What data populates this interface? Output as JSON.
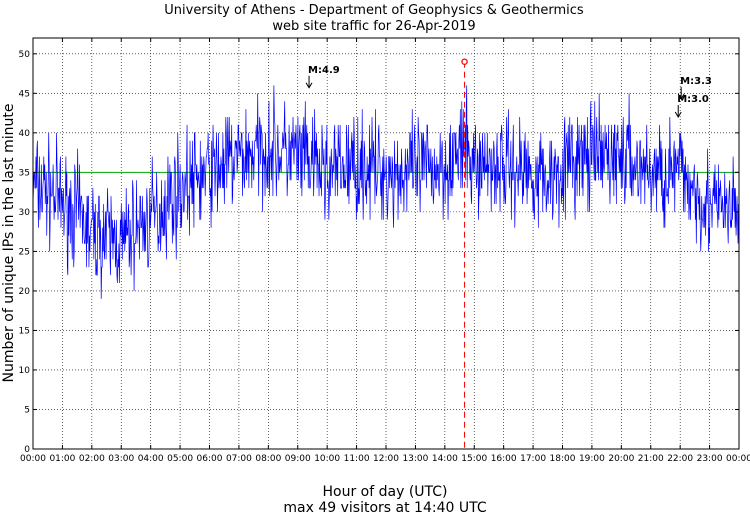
{
  "chart_data": {
    "type": "line",
    "title": "University of Athens - Department of Geophysics & Geothermics",
    "subtitle": "web site traffic for 26-Apr-2019",
    "xlabel": "Hour of day (UTC)",
    "ylabel": "Number of unique IPs in the last minute",
    "footer": "max 49 visitors at 14:40 UTC",
    "xlim": [
      0,
      24
    ],
    "ylim": [
      0,
      52
    ],
    "x_tick_labels": [
      "00:00",
      "01:00",
      "02:00",
      "03:00",
      "04:00",
      "05:00",
      "06:00",
      "07:00",
      "08:00",
      "09:00",
      "10:00",
      "11:00",
      "12:00",
      "13:00",
      "14:00",
      "15:00",
      "16:00",
      "17:00",
      "18:00",
      "19:00",
      "20:00",
      "21:00",
      "22:00",
      "23:00",
      "00:00"
    ],
    "y_ticks": [
      0,
      5,
      10,
      15,
      20,
      25,
      30,
      35,
      40,
      45,
      50
    ],
    "grid": true,
    "series": [
      {
        "color": "#0000ff",
        "hourly_profile": {
          "x": [
            0,
            0.5,
            1,
            1.5,
            2,
            2.5,
            3,
            3.5,
            4,
            4.5,
            5,
            5.5,
            6,
            7,
            8,
            9,
            10,
            11,
            12,
            13,
            14,
            14.67,
            15,
            16,
            17,
            17.5,
            18,
            19,
            20,
            21,
            22,
            22.5,
            23,
            23.5,
            24
          ],
          "y": [
            33,
            33,
            31,
            30,
            27,
            27,
            26,
            28,
            29,
            31,
            33,
            34,
            35,
            37,
            38,
            37,
            35,
            36,
            35,
            35,
            36,
            38,
            36,
            36,
            35,
            34,
            36,
            37,
            37,
            35,
            35,
            33,
            31,
            30,
            30
          ]
        },
        "noise_amplitude": 4
      }
    ],
    "mean_line": {
      "value": 35,
      "color": "#00aa00"
    },
    "max_marker": {
      "x": 14.67,
      "y": 49,
      "color": "#ff0000"
    },
    "annotations": [
      {
        "text": "M:4.9",
        "x": 9.35,
        "y": 47.6
      },
      {
        "text": "M:3.3",
        "x": 22.0,
        "y": 46.2
      },
      {
        "text": "M:3.0",
        "x": 21.9,
        "y": 43.9
      }
    ]
  }
}
